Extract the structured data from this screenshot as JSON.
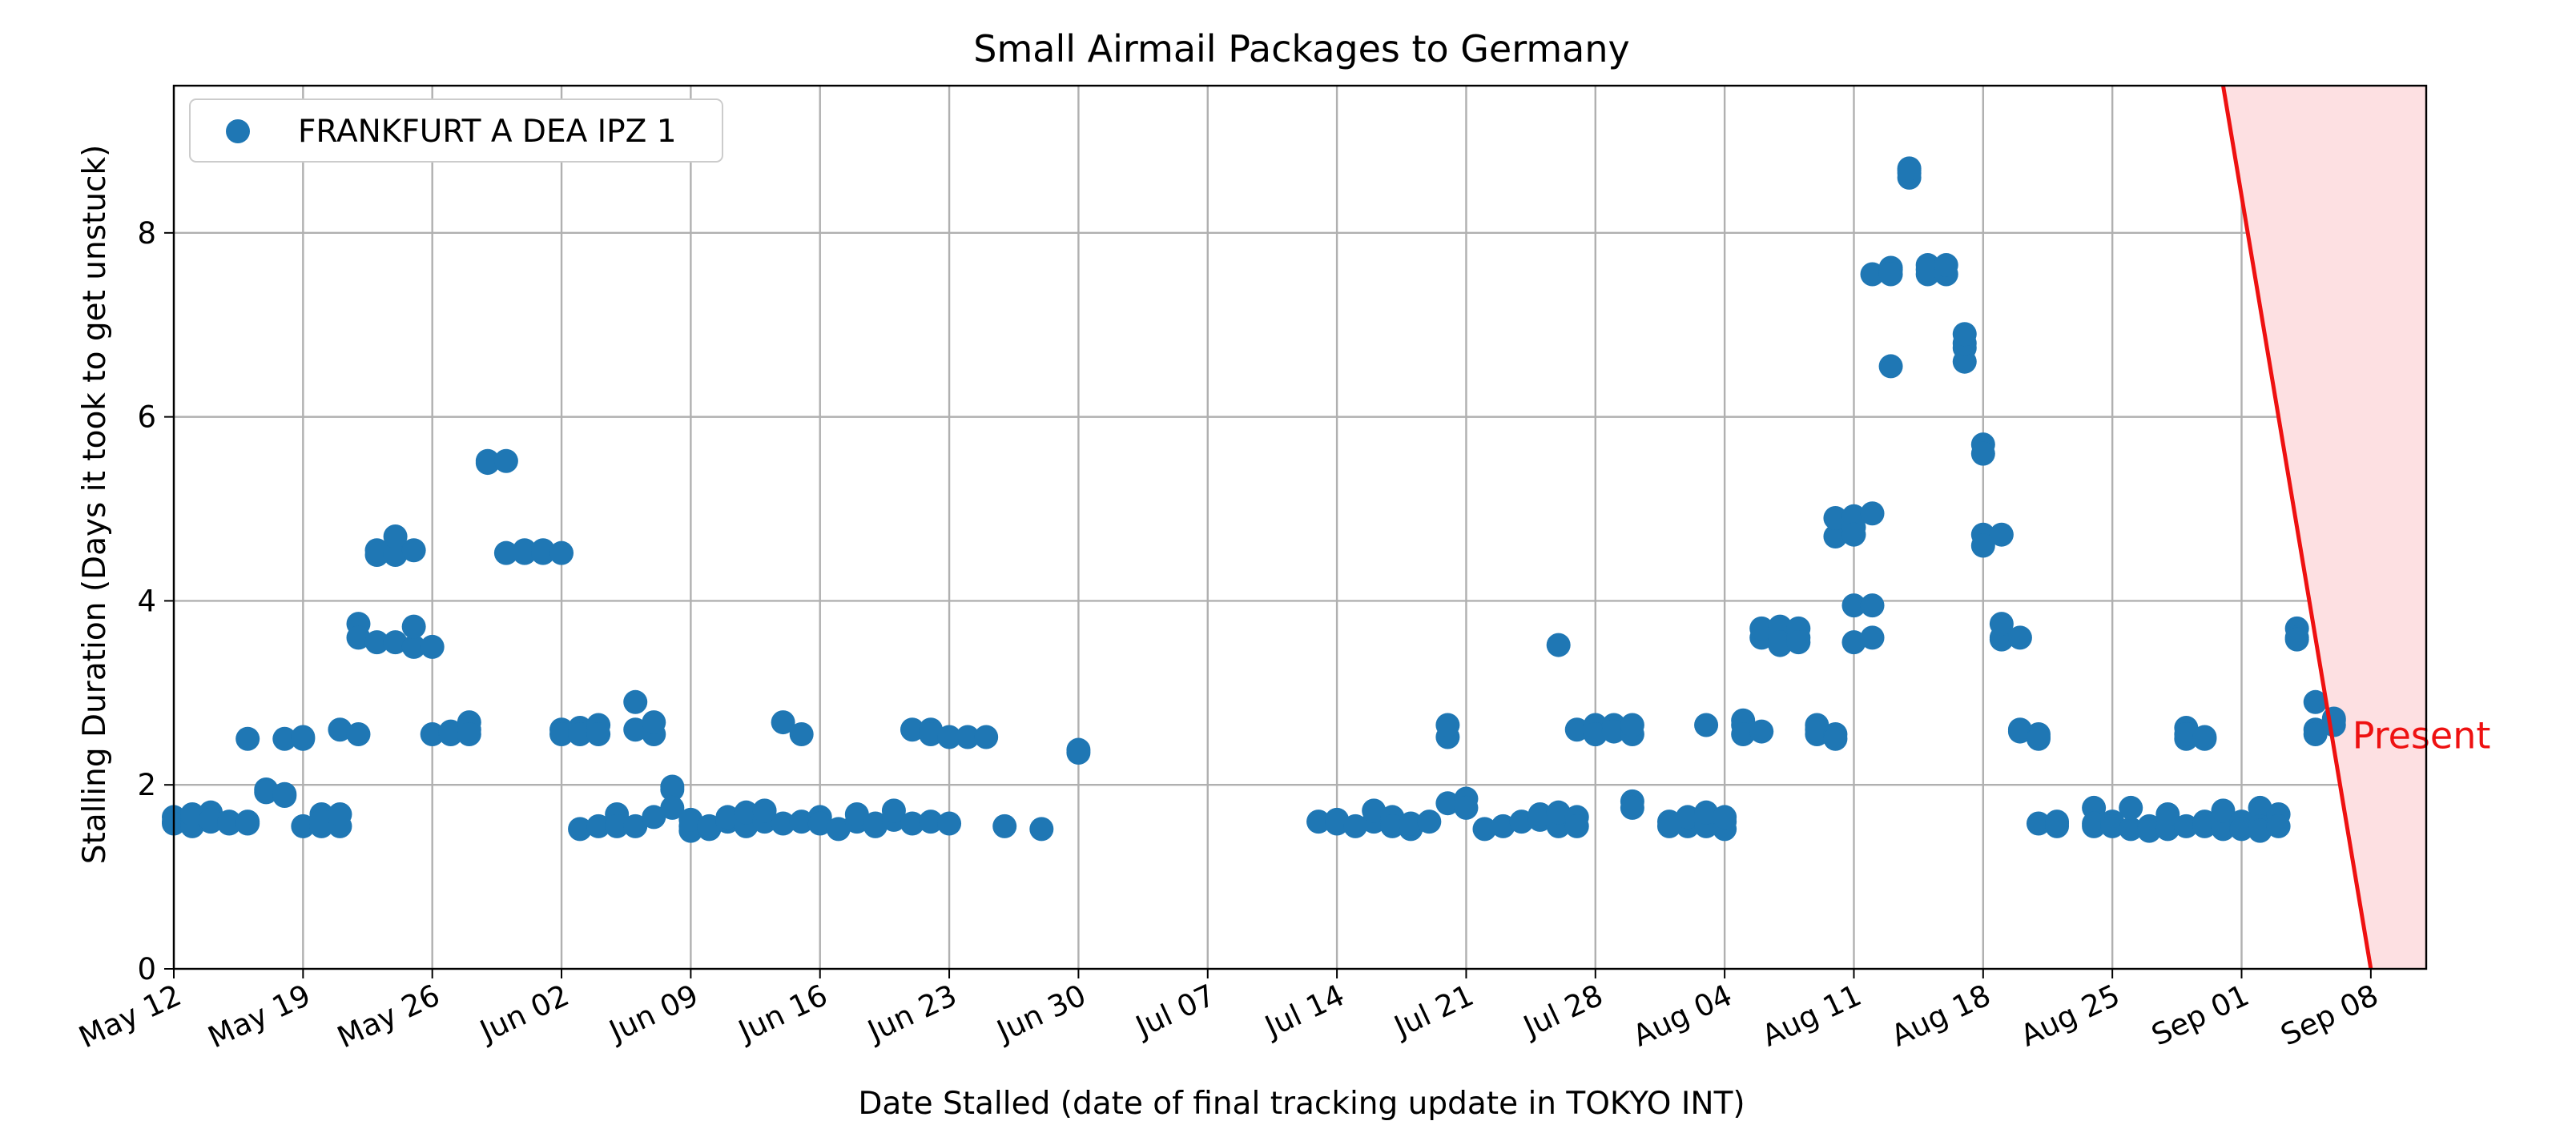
{
  "chart_data": {
    "type": "scatter",
    "title": "Small Airmail Packages to Germany",
    "xlabel": "Date Stalled (date of final tracking update in TOKYO INT)",
    "ylabel": "Stalling Duration (Days it took to get unstuck)",
    "xlim": [
      "2024-05-12",
      "2024-09-11"
    ],
    "ylim": [
      0,
      9.6
    ],
    "x_ticks": [
      "2024-05-12",
      "2024-05-19",
      "2024-05-26",
      "2024-06-02",
      "2024-06-09",
      "2024-06-16",
      "2024-06-23",
      "2024-06-30",
      "2024-07-07",
      "2024-07-14",
      "2024-07-21",
      "2024-07-28",
      "2024-08-04",
      "2024-08-11",
      "2024-08-18",
      "2024-08-25",
      "2024-09-01",
      "2024-09-08"
    ],
    "x_tick_labels": [
      "May 12",
      "May 19",
      "May 26",
      "Jun 02",
      "Jun 09",
      "Jun 16",
      "Jun 23",
      "Jun 30",
      "Jul 07",
      "Jul 14",
      "Jul 21",
      "Jul 28",
      "Aug 04",
      "Aug 11",
      "Aug 18",
      "Aug 25",
      "Sep 01",
      "Sep 08"
    ],
    "y_ticks": [
      0,
      2,
      4,
      6,
      8
    ],
    "y_tick_labels": [
      "0",
      "2",
      "4",
      "6",
      "8"
    ],
    "grid": true,
    "legend_position": "top-left",
    "colors": {
      "series": "#1f77b4",
      "present_line": "#ee1111",
      "present_fill": "#fde0e2"
    },
    "series": [
      {
        "name": "FRANKFURT A DEA IPZ 1",
        "points": [
          [
            "2024-05-12",
            1.6
          ],
          [
            "2024-05-12",
            1.65
          ],
          [
            "2024-05-12",
            1.58
          ],
          [
            "2024-05-13",
            1.6
          ],
          [
            "2024-05-13",
            1.55
          ],
          [
            "2024-05-13",
            1.68
          ],
          [
            "2024-05-14",
            1.6
          ],
          [
            "2024-05-14",
            1.7
          ],
          [
            "2024-05-14",
            1.62
          ],
          [
            "2024-05-15",
            1.6
          ],
          [
            "2024-05-15",
            1.58
          ],
          [
            "2024-05-16",
            1.6
          ],
          [
            "2024-05-16",
            2.5
          ],
          [
            "2024-05-16",
            1.58
          ],
          [
            "2024-05-17",
            1.95
          ],
          [
            "2024-05-17",
            1.92
          ],
          [
            "2024-05-18",
            1.88
          ],
          [
            "2024-05-18",
            1.9
          ],
          [
            "2024-05-18",
            2.5
          ],
          [
            "2024-05-19",
            2.5
          ],
          [
            "2024-05-19",
            2.52
          ],
          [
            "2024-05-19",
            1.55
          ],
          [
            "2024-05-20",
            1.55
          ],
          [
            "2024-05-20",
            1.68
          ],
          [
            "2024-05-20",
            1.6
          ],
          [
            "2024-05-21",
            1.55
          ],
          [
            "2024-05-21",
            1.68
          ],
          [
            "2024-05-21",
            2.6
          ],
          [
            "2024-05-22",
            2.55
          ],
          [
            "2024-05-22",
            3.75
          ],
          [
            "2024-05-22",
            3.6
          ],
          [
            "2024-05-23",
            3.55
          ],
          [
            "2024-05-23",
            4.5
          ],
          [
            "2024-05-23",
            4.55
          ],
          [
            "2024-05-24",
            4.5
          ],
          [
            "2024-05-24",
            4.7
          ],
          [
            "2024-05-24",
            3.55
          ],
          [
            "2024-05-25",
            4.55
          ],
          [
            "2024-05-25",
            3.5
          ],
          [
            "2024-05-25",
            3.72
          ],
          [
            "2024-05-26",
            3.5
          ],
          [
            "2024-05-26",
            2.55
          ],
          [
            "2024-05-27",
            2.55
          ],
          [
            "2024-05-27",
            2.58
          ],
          [
            "2024-05-28",
            2.6
          ],
          [
            "2024-05-28",
            2.68
          ],
          [
            "2024-05-28",
            2.55
          ],
          [
            "2024-05-29",
            5.52
          ],
          [
            "2024-05-29",
            5.5
          ],
          [
            "2024-05-30",
            5.52
          ],
          [
            "2024-05-30",
            4.52
          ],
          [
            "2024-05-31",
            4.52
          ],
          [
            "2024-05-31",
            4.55
          ],
          [
            "2024-06-01",
            4.52
          ],
          [
            "2024-06-01",
            4.55
          ],
          [
            "2024-06-02",
            4.52
          ],
          [
            "2024-06-02",
            2.6
          ],
          [
            "2024-06-02",
            2.55
          ],
          [
            "2024-06-03",
            2.62
          ],
          [
            "2024-06-03",
            1.52
          ],
          [
            "2024-06-03",
            2.55
          ],
          [
            "2024-06-04",
            2.65
          ],
          [
            "2024-06-04",
            2.55
          ],
          [
            "2024-06-04",
            1.55
          ],
          [
            "2024-06-05",
            1.6
          ],
          [
            "2024-06-05",
            1.68
          ],
          [
            "2024-06-05",
            1.55
          ],
          [
            "2024-06-06",
            1.55
          ],
          [
            "2024-06-06",
            2.9
          ],
          [
            "2024-06-06",
            2.6
          ],
          [
            "2024-06-07",
            2.55
          ],
          [
            "2024-06-07",
            2.68
          ],
          [
            "2024-06-07",
            1.65
          ],
          [
            "2024-06-08",
            1.98
          ],
          [
            "2024-06-08",
            1.95
          ],
          [
            "2024-06-08",
            1.75
          ],
          [
            "2024-06-09",
            1.55
          ],
          [
            "2024-06-09",
            1.5
          ],
          [
            "2024-06-09",
            1.62
          ],
          [
            "2024-06-10",
            1.52
          ],
          [
            "2024-06-10",
            1.55
          ],
          [
            "2024-06-11",
            1.6
          ],
          [
            "2024-06-11",
            1.65
          ],
          [
            "2024-06-12",
            1.55
          ],
          [
            "2024-06-12",
            1.7
          ],
          [
            "2024-06-13",
            1.6
          ],
          [
            "2024-06-13",
            1.72
          ],
          [
            "2024-06-14",
            2.68
          ],
          [
            "2024-06-14",
            1.58
          ],
          [
            "2024-06-15",
            2.55
          ],
          [
            "2024-06-15",
            1.6
          ],
          [
            "2024-06-16",
            1.65
          ],
          [
            "2024-06-16",
            1.58
          ],
          [
            "2024-06-17",
            1.52
          ],
          [
            "2024-06-18",
            1.6
          ],
          [
            "2024-06-18",
            1.68
          ],
          [
            "2024-06-19",
            1.58
          ],
          [
            "2024-06-19",
            1.55
          ],
          [
            "2024-06-20",
            1.62
          ],
          [
            "2024-06-20",
            1.72
          ],
          [
            "2024-06-21",
            1.58
          ],
          [
            "2024-06-21",
            2.6
          ],
          [
            "2024-06-22",
            2.6
          ],
          [
            "2024-06-22",
            2.55
          ],
          [
            "2024-06-22",
            1.6
          ],
          [
            "2024-06-23",
            1.58
          ],
          [
            "2024-06-23",
            2.52
          ],
          [
            "2024-06-24",
            2.52
          ],
          [
            "2024-06-25",
            2.52
          ],
          [
            "2024-06-26",
            1.55
          ],
          [
            "2024-06-28",
            1.52
          ],
          [
            "2024-06-30",
            2.35
          ],
          [
            "2024-06-30",
            2.38
          ],
          [
            "2024-07-13",
            1.6
          ],
          [
            "2024-07-14",
            1.58
          ],
          [
            "2024-07-14",
            1.62
          ],
          [
            "2024-07-15",
            1.55
          ],
          [
            "2024-07-16",
            1.6
          ],
          [
            "2024-07-16",
            1.72
          ],
          [
            "2024-07-17",
            1.65
          ],
          [
            "2024-07-17",
            1.55
          ],
          [
            "2024-07-18",
            1.52
          ],
          [
            "2024-07-18",
            1.58
          ],
          [
            "2024-07-19",
            1.6
          ],
          [
            "2024-07-20",
            2.52
          ],
          [
            "2024-07-20",
            2.65
          ],
          [
            "2024-07-20",
            1.8
          ],
          [
            "2024-07-21",
            1.85
          ],
          [
            "2024-07-21",
            1.75
          ],
          [
            "2024-07-22",
            1.52
          ],
          [
            "2024-07-23",
            1.55
          ],
          [
            "2024-07-24",
            1.6
          ],
          [
            "2024-07-25",
            1.62
          ],
          [
            "2024-07-25",
            1.68
          ],
          [
            "2024-07-26",
            1.55
          ],
          [
            "2024-07-26",
            3.52
          ],
          [
            "2024-07-26",
            1.7
          ],
          [
            "2024-07-27",
            1.65
          ],
          [
            "2024-07-27",
            1.55
          ],
          [
            "2024-07-27",
            2.6
          ],
          [
            "2024-07-28",
            2.55
          ],
          [
            "2024-07-28",
            2.65
          ],
          [
            "2024-07-28",
            2.55
          ],
          [
            "2024-07-29",
            2.6
          ],
          [
            "2024-07-29",
            2.65
          ],
          [
            "2024-07-29",
            2.58
          ],
          [
            "2024-07-30",
            2.55
          ],
          [
            "2024-07-30",
            2.65
          ],
          [
            "2024-07-30",
            1.82
          ],
          [
            "2024-07-30",
            1.75
          ],
          [
            "2024-08-01",
            1.55
          ],
          [
            "2024-08-01",
            1.6
          ],
          [
            "2024-08-02",
            1.55
          ],
          [
            "2024-08-02",
            1.65
          ],
          [
            "2024-08-03",
            1.55
          ],
          [
            "2024-08-03",
            2.65
          ],
          [
            "2024-08-03",
            1.7
          ],
          [
            "2024-08-04",
            1.6
          ],
          [
            "2024-08-04",
            1.52
          ],
          [
            "2024-08-04",
            1.65
          ],
          [
            "2024-08-05",
            2.65
          ],
          [
            "2024-08-05",
            2.7
          ],
          [
            "2024-08-05",
            2.55
          ],
          [
            "2024-08-06",
            3.6
          ],
          [
            "2024-08-06",
            3.7
          ],
          [
            "2024-08-06",
            2.58
          ],
          [
            "2024-08-07",
            3.52
          ],
          [
            "2024-08-07",
            3.6
          ],
          [
            "2024-08-07",
            3.72
          ],
          [
            "2024-08-07",
            3.55
          ],
          [
            "2024-08-08",
            3.6
          ],
          [
            "2024-08-08",
            3.7
          ],
          [
            "2024-08-08",
            3.55
          ],
          [
            "2024-08-09",
            2.65
          ],
          [
            "2024-08-09",
            2.55
          ],
          [
            "2024-08-09",
            2.6
          ],
          [
            "2024-08-10",
            2.55
          ],
          [
            "2024-08-10",
            2.5
          ],
          [
            "2024-08-10",
            4.7
          ],
          [
            "2024-08-10",
            4.9
          ],
          [
            "2024-08-11",
            4.8
          ],
          [
            "2024-08-11",
            4.92
          ],
          [
            "2024-08-11",
            4.72
          ],
          [
            "2024-08-11",
            3.95
          ],
          [
            "2024-08-11",
            3.55
          ],
          [
            "2024-08-12",
            3.6
          ],
          [
            "2024-08-12",
            3.95
          ],
          [
            "2024-08-12",
            7.55
          ],
          [
            "2024-08-12",
            4.95
          ],
          [
            "2024-08-13",
            7.6
          ],
          [
            "2024-08-13",
            7.62
          ],
          [
            "2024-08-13",
            6.55
          ],
          [
            "2024-08-13",
            7.55
          ],
          [
            "2024-08-14",
            8.65
          ],
          [
            "2024-08-14",
            8.6
          ],
          [
            "2024-08-14",
            8.68
          ],
          [
            "2024-08-14",
            8.7
          ],
          [
            "2024-08-15",
            7.65
          ],
          [
            "2024-08-15",
            7.55
          ],
          [
            "2024-08-15",
            7.6
          ],
          [
            "2024-08-16",
            7.55
          ],
          [
            "2024-08-16",
            7.65
          ],
          [
            "2024-08-17",
            6.75
          ],
          [
            "2024-08-17",
            6.6
          ],
          [
            "2024-08-17",
            6.8
          ],
          [
            "2024-08-17",
            6.9
          ],
          [
            "2024-08-18",
            5.7
          ],
          [
            "2024-08-18",
            5.6
          ],
          [
            "2024-08-18",
            4.72
          ],
          [
            "2024-08-18",
            4.6
          ],
          [
            "2024-08-19",
            4.72
          ],
          [
            "2024-08-19",
            3.6
          ],
          [
            "2024-08-19",
            3.58
          ],
          [
            "2024-08-19",
            3.75
          ],
          [
            "2024-08-20",
            3.6
          ],
          [
            "2024-08-20",
            2.6
          ],
          [
            "2024-08-20",
            2.58
          ],
          [
            "2024-08-21",
            2.55
          ],
          [
            "2024-08-21",
            2.52
          ],
          [
            "2024-08-21",
            2.5
          ],
          [
            "2024-08-21",
            1.58
          ],
          [
            "2024-08-22",
            1.6
          ],
          [
            "2024-08-22",
            1.55
          ],
          [
            "2024-08-22",
            1.58
          ],
          [
            "2024-08-24",
            1.55
          ],
          [
            "2024-08-24",
            1.75
          ],
          [
            "2024-08-24",
            1.58
          ],
          [
            "2024-08-25",
            1.6
          ],
          [
            "2024-08-25",
            1.55
          ],
          [
            "2024-08-26",
            1.52
          ],
          [
            "2024-08-26",
            1.75
          ],
          [
            "2024-08-27",
            1.55
          ],
          [
            "2024-08-27",
            1.5
          ],
          [
            "2024-08-28",
            1.52
          ],
          [
            "2024-08-28",
            1.68
          ],
          [
            "2024-08-29",
            2.5
          ],
          [
            "2024-08-29",
            2.62
          ],
          [
            "2024-08-29",
            2.55
          ],
          [
            "2024-08-29",
            1.55
          ],
          [
            "2024-08-30",
            2.52
          ],
          [
            "2024-08-30",
            2.5
          ],
          [
            "2024-08-30",
            1.6
          ],
          [
            "2024-08-30",
            1.55
          ],
          [
            "2024-08-31",
            1.52
          ],
          [
            "2024-08-31",
            1.72
          ],
          [
            "2024-09-01",
            1.6
          ],
          [
            "2024-09-01",
            1.52
          ],
          [
            "2024-09-02",
            1.75
          ],
          [
            "2024-09-02",
            1.55
          ],
          [
            "2024-09-02",
            1.5
          ],
          [
            "2024-09-03",
            1.68
          ],
          [
            "2024-09-03",
            1.55
          ],
          [
            "2024-09-04",
            3.7
          ],
          [
            "2024-09-04",
            3.6
          ],
          [
            "2024-09-04",
            3.58
          ],
          [
            "2024-09-05",
            2.9
          ],
          [
            "2024-09-05",
            2.6
          ],
          [
            "2024-09-05",
            2.55
          ],
          [
            "2024-09-06",
            2.7
          ],
          [
            "2024-09-06",
            2.65
          ],
          [
            "2024-09-06",
            2.72
          ]
        ]
      }
    ],
    "annotations": [
      {
        "text": "Present",
        "x": "2024-09-07",
        "y": 2.4
      }
    ],
    "present_line": {
      "top": {
        "x": "2024-08-31",
        "y": 9.6
      },
      "bottom": {
        "x": "2024-09-08",
        "y": 0
      }
    },
    "present_region_right": "2024-09-11"
  }
}
